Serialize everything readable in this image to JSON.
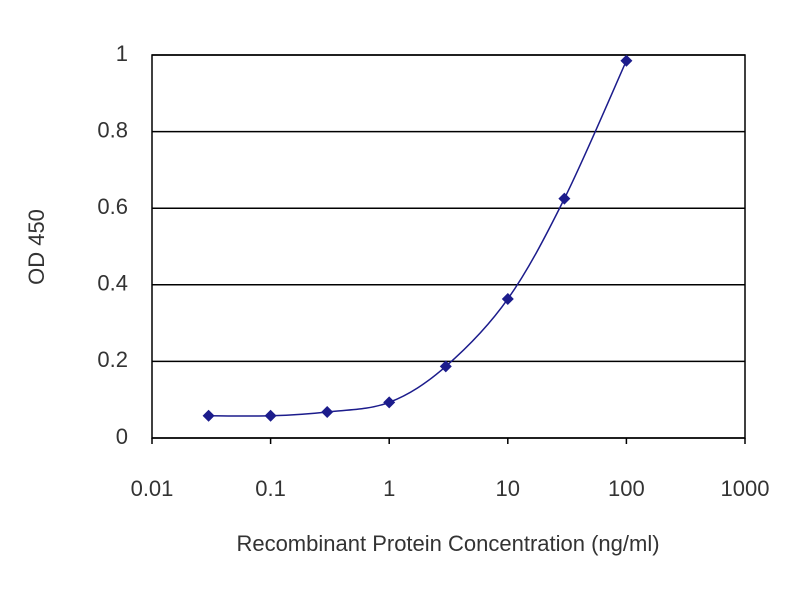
{
  "chart_data": {
    "type": "line",
    "x_label": "Recombinant Protein Concentration (ng/ml)",
    "y_label": "OD 450",
    "x": [
      0.03,
      0.1,
      0.3,
      1,
      3,
      10,
      30,
      100
    ],
    "values": [
      0.058,
      0.058,
      0.068,
      0.093,
      0.187,
      0.363,
      0.625,
      0.985
    ],
    "color": "#1c1c8c",
    "xscale": "log",
    "xlim": [
      0.01,
      1000
    ],
    "xticks": [
      0.01,
      0.1,
      1,
      10,
      100,
      1000
    ],
    "ylim": [
      0,
      1
    ],
    "yticks": [
      0,
      0.2,
      0.4,
      0.6,
      0.8,
      1
    ],
    "grid": true,
    "markers": true,
    "smooth": true
  }
}
